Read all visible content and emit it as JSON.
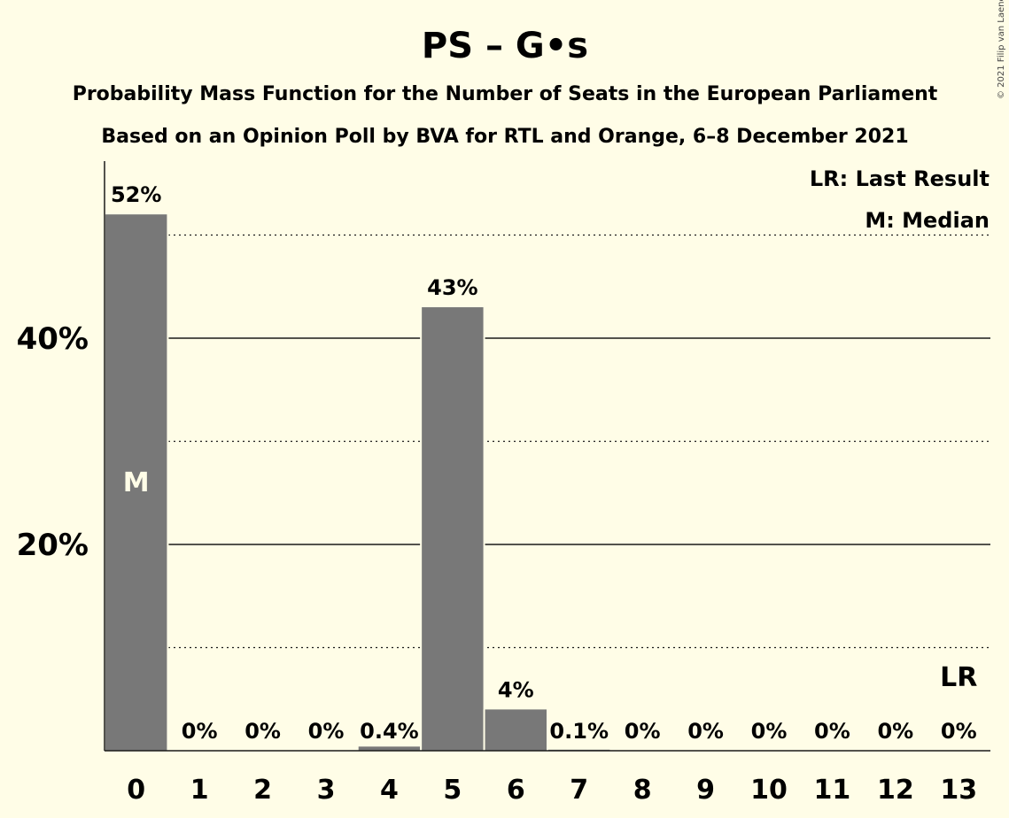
{
  "chart_data": {
    "type": "bar",
    "title": "PS – G•s",
    "subtitle": "Probability Mass Function for the Number of Seats in the European Parliament",
    "subtitle2": "Based on an Opinion Poll by BVA for RTL and Orange, 6–8 December 2021",
    "categories": [
      "0",
      "1",
      "2",
      "3",
      "4",
      "5",
      "6",
      "7",
      "8",
      "9",
      "10",
      "11",
      "12",
      "13"
    ],
    "values": [
      52,
      0,
      0,
      0,
      0.4,
      43,
      4,
      0.1,
      0,
      0,
      0,
      0,
      0,
      0
    ],
    "value_labels": [
      "52%",
      "0%",
      "0%",
      "0%",
      "0.4%",
      "43%",
      "4%",
      "0.1%",
      "0%",
      "0%",
      "0%",
      "0%",
      "0%",
      "0%"
    ],
    "ylim": [
      0,
      57
    ],
    "yticks_major": [
      20,
      40
    ],
    "ytick_labels": [
      "20%",
      "40%"
    ],
    "yticks_minor": [
      10,
      30,
      50
    ],
    "bar_color": "#787878",
    "background": "#fffde7",
    "median_index": 0,
    "median_marker": "M",
    "last_result_index": 13,
    "last_result_marker": "LR",
    "legend": {
      "last_result": "LR: Last Result",
      "median": "M: Median",
      "placement": "top-right"
    },
    "copyright": "© 2021 Filip van Laenen"
  }
}
